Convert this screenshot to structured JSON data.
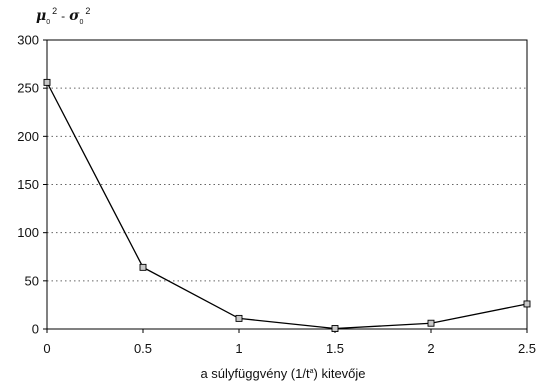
{
  "chart_data": {
    "type": "line",
    "ylabel": {
      "sym1": "μ",
      "sub1": "0",
      "sup1": "2",
      "op": "-",
      "sym2": "σ",
      "sub2": "0",
      "sup2": "2"
    },
    "xlabel": {
      "before": "a súlyfüggvény (1/t",
      "sup": "a",
      "after": ") kitevője"
    },
    "x": [
      0,
      0.5,
      1,
      1.5,
      2,
      2.5
    ],
    "series": [
      {
        "values": [
          256,
          64,
          11,
          0.5,
          6,
          26
        ]
      }
    ],
    "xlim": [
      0,
      2.5
    ],
    "ylim": [
      0,
      300
    ],
    "xticks": [
      "0",
      "0.5",
      "1",
      "1.5",
      "2",
      "2.5"
    ],
    "yticks": [
      "0",
      "50",
      "100",
      "150",
      "200",
      "250",
      "300"
    ],
    "grid": "horizontal dotted",
    "line_color": "#000000",
    "marker_fill": "#c8c8c8",
    "marker_shape": "square"
  }
}
